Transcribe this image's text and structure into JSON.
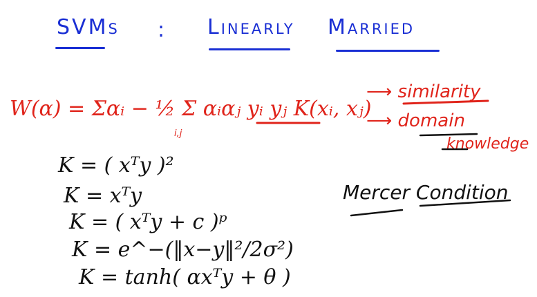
{
  "title": {
    "part1": "SVMs",
    "colon": ":",
    "part2": "Linearly",
    "part3": "Married"
  },
  "equation": {
    "w_alpha": "W(α) = Σαᵢ − ½ Σ αᵢαⱼ yᵢ yⱼ K(xᵢ, xⱼ)",
    "subscript": "i,j"
  },
  "annotations": {
    "similarity": "similarity",
    "domain": "domain",
    "knowledge": "knowledge"
  },
  "kernels": {
    "k1": "K = ( xᵀy )²",
    "k2": "K =  xᵀy",
    "k3": "K = ( xᵀy + c )ᵖ",
    "k4": "K =  e^−(‖x−y‖²/2σ²)",
    "k5": "K =  tanh( αxᵀy + θ )"
  },
  "mercer": "Mercer Condition",
  "colors": {
    "blue": "#1a2fd4",
    "red": "#e0241b",
    "black": "#111111"
  }
}
